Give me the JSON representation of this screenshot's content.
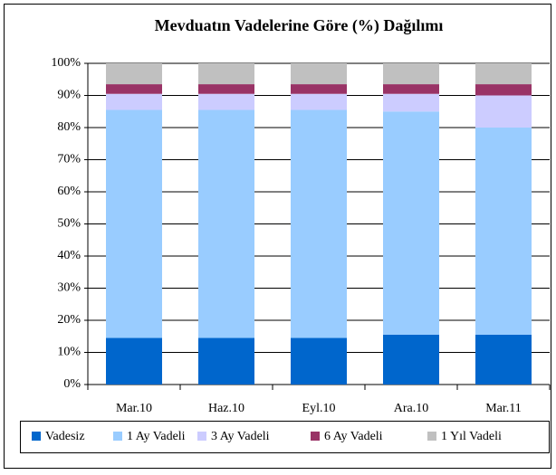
{
  "chart_data": {
    "type": "stacked_bar",
    "title": "Mevduatın  Vadelerine Göre (%) Dağılımı",
    "categories": [
      "Mar.10",
      "Haz.10",
      "Eyl.10",
      "Ara.10",
      "Mar.11"
    ],
    "series": [
      {
        "name": "Vadesiz",
        "color": "#0066cc",
        "values": [
          14.5,
          14.5,
          14.5,
          15.5,
          15.5
        ]
      },
      {
        "name": "1 Ay Vadeli",
        "color": "#99ccff",
        "values": [
          71,
          71,
          71,
          69.5,
          64.5
        ]
      },
      {
        "name": "3 Ay Vadeli",
        "color": "#ccccff",
        "values": [
          5,
          5,
          5,
          5.5,
          10
        ]
      },
      {
        "name": "6 Ay Vadeli",
        "color": "#993366",
        "values": [
          3,
          3,
          3,
          3,
          3.5
        ]
      },
      {
        "name": "1 Yıl Vadeli",
        "color": "#c0c0c0",
        "values": [
          6.5,
          6.5,
          6.5,
          6.5,
          6.5
        ]
      }
    ],
    "ylim": [
      0,
      100
    ],
    "yticks": [
      {
        "value": 0,
        "label": "0%"
      },
      {
        "value": 10,
        "label": "10%"
      },
      {
        "value": 20,
        "label": "20%"
      },
      {
        "value": 30,
        "label": "30%"
      },
      {
        "value": 40,
        "label": "40%"
      },
      {
        "value": 50,
        "label": "50%"
      },
      {
        "value": 60,
        "label": "60%"
      },
      {
        "value": 70,
        "label": "70%"
      },
      {
        "value": 80,
        "label": "80%"
      },
      {
        "value": 90,
        "label": "90%"
      },
      {
        "value": 100,
        "label": "100%"
      }
    ],
    "grid": true,
    "legend": "bottom"
  }
}
